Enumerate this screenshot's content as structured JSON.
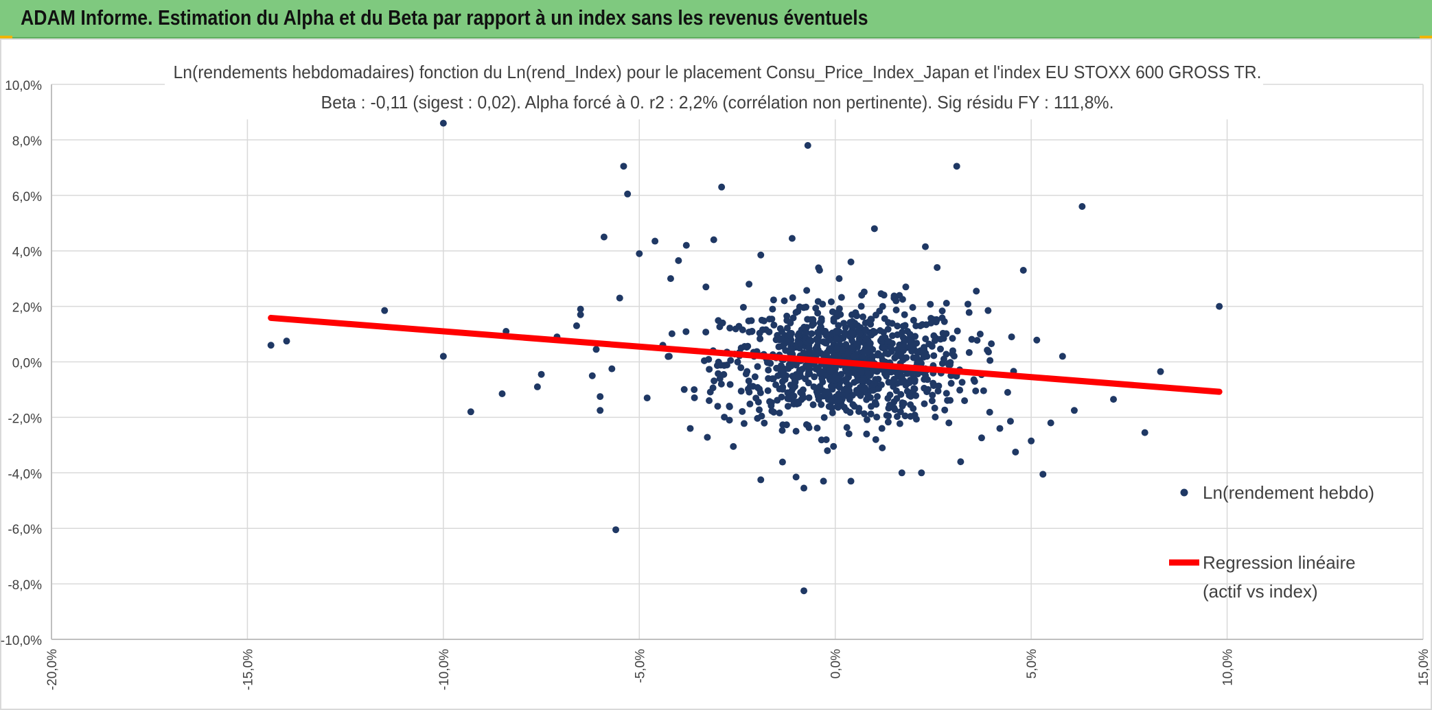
{
  "banner": {
    "title": "ADAM Informe. Estimation du Alpha et du Beta par rapport à un index sans les revenus éventuels"
  },
  "colors": {
    "banner": "#7fc97f",
    "points": "#1f3864",
    "regression": "#ff0000",
    "grid": "#d9d9d9",
    "text": "#404040"
  },
  "chart_data": {
    "type": "scatter",
    "title": "Ln(rendements hebdomadaires) fonction du Ln(rend_Index) pour le placement Consu_Price_Index_Japan et l'index EU STOXX 600 GROSS TR.",
    "subtitle": "Beta : -0,11 (sigest : 0,02). Alpha forcé à 0. r2 : 2,2% (corrélation non pertinente). Sig résidu FY : 111,8%.",
    "xlim": [
      -20,
      15
    ],
    "ylim": [
      -10,
      10
    ],
    "x_ticks": [
      "-20,0%",
      "-15,0%",
      "-10,0%",
      "-5,0%",
      "0,0%",
      "5,0%",
      "10,0%",
      "15,0%"
    ],
    "y_ticks": [
      "10,0%",
      "8,0%",
      "6,0%",
      "4,0%",
      "2,0%",
      "0,0%",
      "-2,0%",
      "-4,0%",
      "-6,0%",
      "-8,0%",
      "-10,0%"
    ],
    "grid": true,
    "legend_position": "right",
    "series": [
      {
        "name": "Ln(rendement hebdo)",
        "kind": "scatter",
        "color": "#1f3864",
        "points": [
          [
            -14.4,
            0.6
          ],
          [
            -14.0,
            0.75
          ],
          [
            -11.5,
            1.85
          ],
          [
            -10.0,
            0.2
          ],
          [
            -9.3,
            -1.8
          ],
          [
            -8.5,
            -1.15
          ],
          [
            -7.6,
            -0.9
          ],
          [
            -7.5,
            -0.45
          ],
          [
            -6.6,
            1.3
          ],
          [
            -6.5,
            1.9
          ],
          [
            -6.5,
            1.7
          ],
          [
            -6.2,
            -0.5
          ],
          [
            -6.0,
            -1.25
          ],
          [
            -6.0,
            -1.75
          ],
          [
            -5.9,
            4.5
          ],
          [
            -5.6,
            -6.05
          ],
          [
            -5.5,
            2.3
          ],
          [
            -5.4,
            7.05
          ],
          [
            -5.3,
            6.05
          ],
          [
            -5.0,
            3.9
          ],
          [
            -4.6,
            4.35
          ],
          [
            -4.0,
            3.65
          ],
          [
            -3.8,
            4.2
          ],
          [
            -3.1,
            4.4
          ],
          [
            -2.9,
            6.3
          ],
          [
            -1.9,
            3.85
          ],
          [
            -1.3,
            2.2
          ],
          [
            -1.1,
            4.45
          ],
          [
            -0.7,
            7.8
          ],
          [
            -0.4,
            3.3
          ],
          [
            0.4,
            3.6
          ],
          [
            1.0,
            4.8
          ],
          [
            2.3,
            4.15
          ],
          [
            3.1,
            7.05
          ],
          [
            4.8,
            3.3
          ],
          [
            6.3,
            5.6
          ],
          [
            9.8,
            2.0
          ],
          [
            8.3,
            -0.35
          ],
          [
            7.9,
            -2.55
          ],
          [
            7.1,
            -1.35
          ],
          [
            6.1,
            -1.75
          ],
          [
            5.8,
            0.2
          ],
          [
            5.3,
            -4.05
          ],
          [
            5.0,
            -2.85
          ],
          [
            4.6,
            -3.25
          ],
          [
            2.2,
            -4.0
          ],
          [
            0.4,
            -4.3
          ],
          [
            -0.8,
            -4.55
          ],
          [
            -1.9,
            -4.25
          ],
          [
            -0.8,
            -8.25
          ],
          [
            -10.0,
            8.6
          ],
          [
            3.2,
            -3.6
          ],
          [
            -0.3,
            -4.3
          ],
          [
            1.7,
            -4.0
          ],
          [
            -1.0,
            -4.15
          ],
          [
            -2.6,
            -3.05
          ],
          [
            -3.7,
            -2.4
          ],
          [
            -4.8,
            -1.3
          ],
          [
            -5.7,
            -0.25
          ],
          [
            5.5,
            -2.2
          ],
          [
            4.2,
            -2.4
          ],
          [
            3.6,
            2.55
          ],
          [
            -3.3,
            2.7
          ],
          [
            -4.2,
            3.0
          ],
          [
            -2.2,
            2.8
          ],
          [
            2.6,
            3.4
          ],
          [
            3.9,
            1.85
          ],
          [
            -6.1,
            0.45
          ],
          [
            -7.1,
            0.9
          ],
          [
            -8.4,
            1.1
          ],
          [
            4.5,
            0.9
          ],
          [
            4.4,
            -1.1
          ],
          [
            -3.0,
            -1.6
          ],
          [
            2.9,
            -2.2
          ],
          [
            1.8,
            2.7
          ],
          [
            -1.6,
            1.9
          ],
          [
            0.1,
            3.0
          ],
          [
            -0.2,
            -3.2
          ],
          [
            1.2,
            -3.1
          ],
          [
            -2.4,
            0.5
          ],
          [
            2.0,
            1.5
          ],
          [
            -3.6,
            -1.0
          ],
          [
            3.3,
            -1.4
          ],
          [
            -1.0,
            -2.5
          ],
          [
            0.8,
            -2.6
          ],
          [
            -4.4,
            0.6
          ],
          [
            3.0,
            0.4
          ],
          [
            -2.7,
            -2.1
          ],
          [
            1.5,
            2.3
          ],
          [
            -1.4,
            1.2
          ]
        ]
      },
      {
        "name": "Regression linéaire (actif vs index)",
        "kind": "line",
        "color": "#ff0000",
        "beta": -0.11,
        "alpha": 0,
        "x_range": [
          -14.4,
          9.8
        ]
      }
    ]
  },
  "legend": {
    "scatter_label": "Ln(rendement hebdo)",
    "line_label_1": "Regression linéaire",
    "line_label_2": "(actif vs index)"
  }
}
